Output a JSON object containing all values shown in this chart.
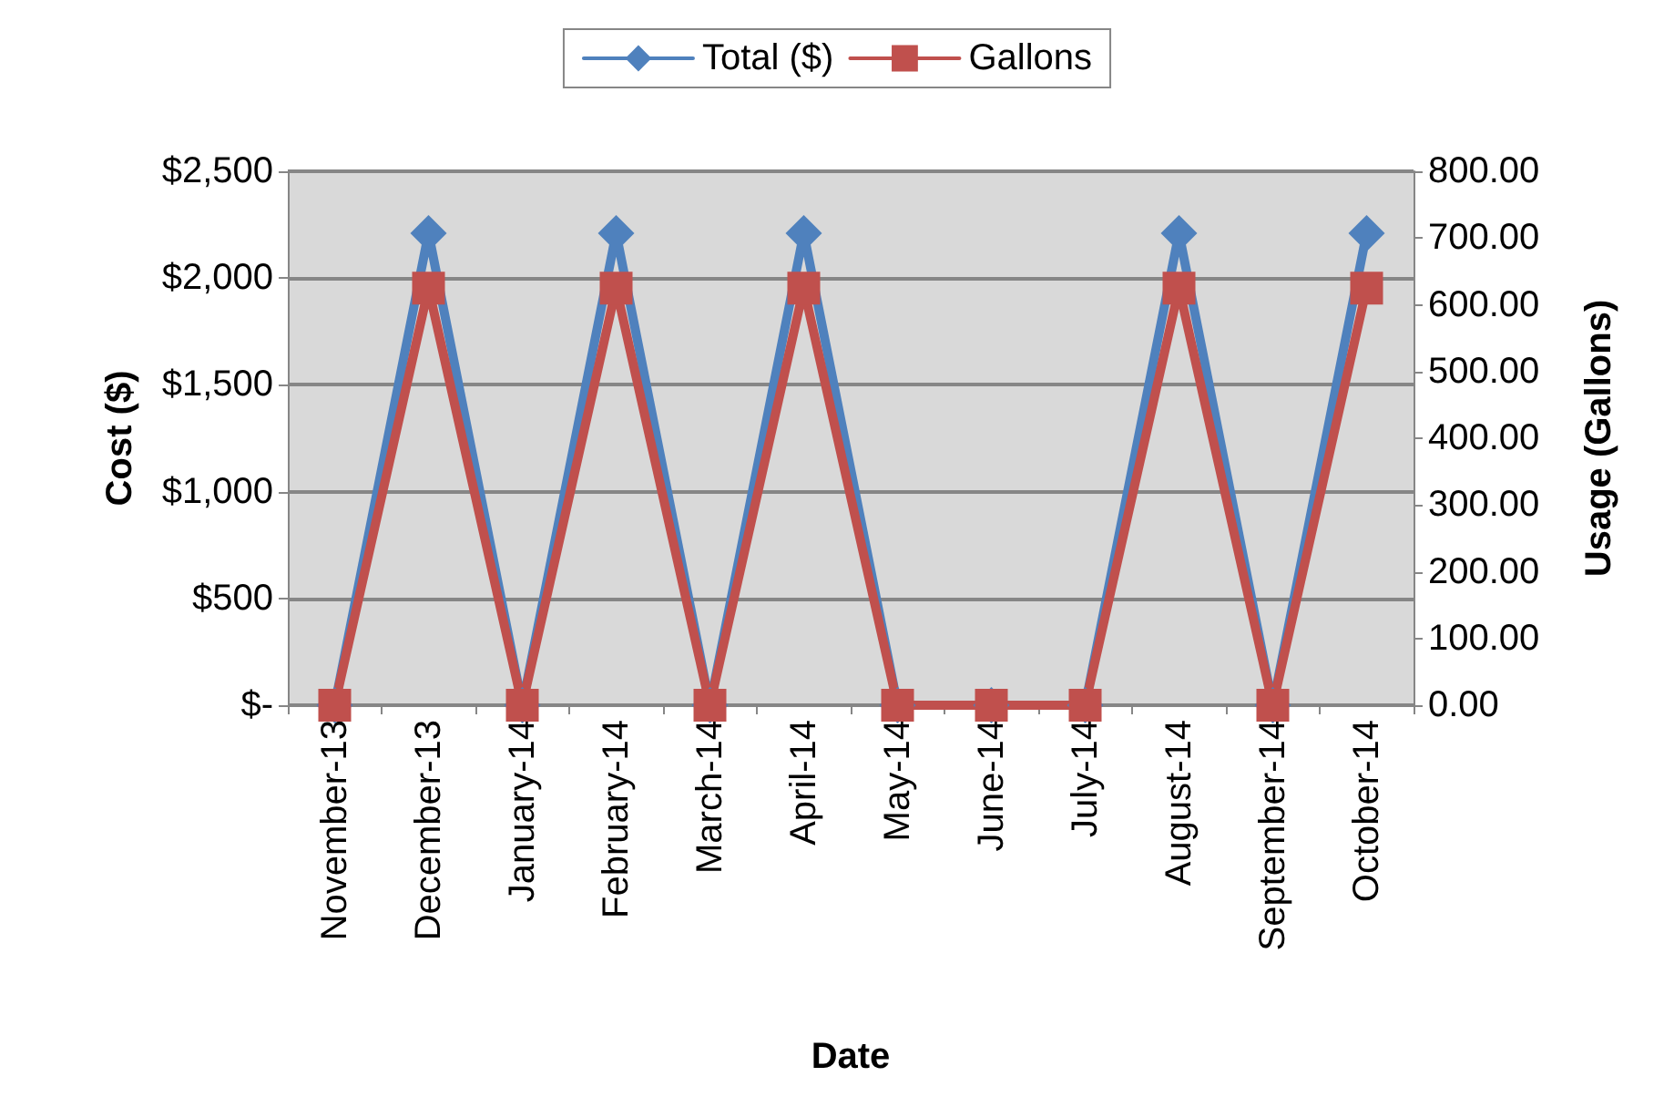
{
  "chart_data": {
    "type": "line",
    "xlabel": "Date",
    "ylabel": "Cost ($)",
    "y2label": "Usage (Gallons)",
    "categories": [
      "November-13",
      "December-13",
      "January-14",
      "February-14",
      "March-14",
      "April-14",
      "May-14",
      "June-14",
      "July-14",
      "August-14",
      "September-14",
      "October-14"
    ],
    "series": [
      {
        "name": "Total ($)",
        "color": "#4f81bd",
        "marker": "diamond",
        "values": [
          0,
          2210,
          0,
          2210,
          0,
          2210,
          0,
          0,
          0,
          2210,
          0,
          2210
        ]
      },
      {
        "name": "Gallons",
        "color": "#c0504d",
        "marker": "square",
        "axis": "y2",
        "values": [
          0,
          625,
          0,
          625,
          0,
          625,
          0,
          0,
          0,
          625,
          0,
          625
        ]
      }
    ],
    "ylim": [
      0,
      2500
    ],
    "yticks": [
      {
        "value": 0,
        "label": "$-"
      },
      {
        "value": 500,
        "label": "$500"
      },
      {
        "value": 1000,
        "label": "$1,000"
      },
      {
        "value": 1500,
        "label": "$1,500"
      },
      {
        "value": 2000,
        "label": "$2,000"
      },
      {
        "value": 2500,
        "label": "$2,500"
      }
    ],
    "y2lim": [
      0,
      800
    ],
    "y2ticks": [
      {
        "value": 0,
        "label": "0.00"
      },
      {
        "value": 100,
        "label": "100.00"
      },
      {
        "value": 200,
        "label": "200.00"
      },
      {
        "value": 300,
        "label": "300.00"
      },
      {
        "value": 400,
        "label": "400.00"
      },
      {
        "value": 500,
        "label": "500.00"
      },
      {
        "value": 600,
        "label": "600.00"
      },
      {
        "value": 700,
        "label": "700.00"
      },
      {
        "value": 800,
        "label": "800.00"
      }
    ],
    "grid": "y",
    "legend": "top",
    "line_style": "solid"
  }
}
